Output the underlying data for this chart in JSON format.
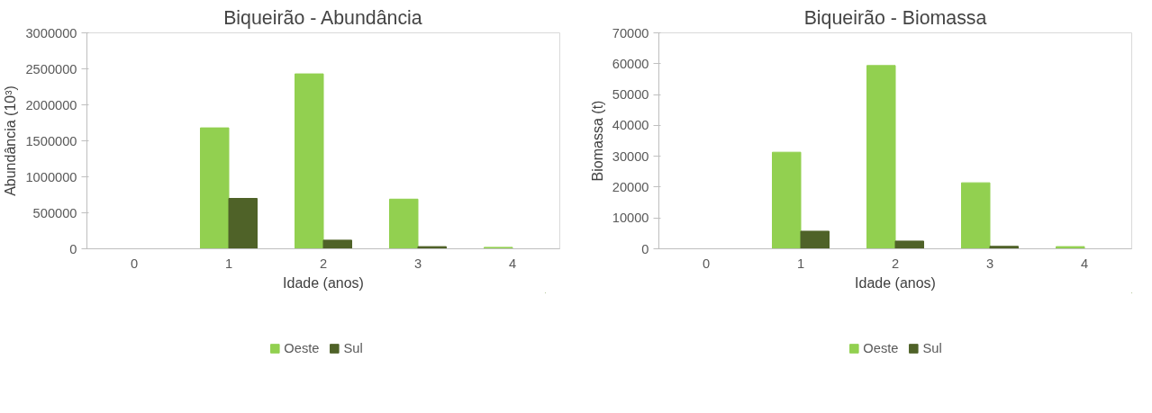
{
  "chart_data": [
    {
      "type": "bar",
      "title": "Biqueirão - Abundância",
      "xlabel": "Idade (anos)",
      "ylabel": "Abundância (10³)",
      "categories": [
        "0",
        "1",
        "2",
        "3",
        "4"
      ],
      "series": [
        {
          "name": "Oeste",
          "color": "#92d050",
          "values": [
            0,
            1680000,
            2430000,
            690000,
            20000
          ]
        },
        {
          "name": "Sul",
          "color": "#4f6228",
          "values": [
            0,
            700000,
            120000,
            30000,
            0
          ]
        }
      ],
      "ylim": [
        0,
        3000000
      ],
      "yticks": [
        0,
        500000,
        1000000,
        1500000,
        2000000,
        2500000,
        3000000
      ],
      "grid": false,
      "legend": "bottom"
    },
    {
      "type": "bar",
      "title": "Biqueirão - Biomassa",
      "xlabel": "Idade (anos)",
      "ylabel": "Biomassa (t)",
      "categories": [
        "0",
        "1",
        "2",
        "3",
        "4"
      ],
      "series": [
        {
          "name": "Oeste",
          "color": "#92d050",
          "values": [
            0,
            31300,
            59400,
            21400,
            700
          ]
        },
        {
          "name": "Sul",
          "color": "#4f6228",
          "values": [
            0,
            5700,
            2500,
            800,
            0
          ]
        }
      ],
      "ylim": [
        0,
        70000
      ],
      "yticks": [
        0,
        10000,
        20000,
        30000,
        40000,
        50000,
        60000,
        70000
      ],
      "grid": false,
      "legend": "bottom"
    }
  ]
}
